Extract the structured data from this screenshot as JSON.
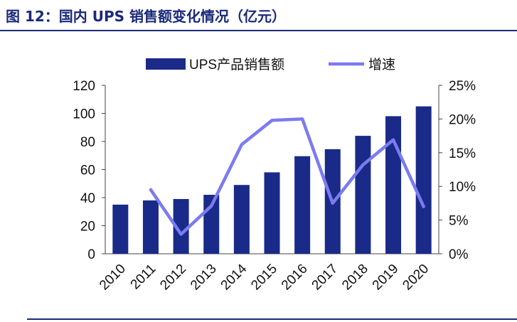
{
  "figure": {
    "title": "图 12：国内 UPS 销售额变化情况（亿元）"
  },
  "chart_data": {
    "type": "bar",
    "categories": [
      "2010",
      "2011",
      "2012",
      "2013",
      "2014",
      "2015",
      "2016",
      "2017",
      "2018",
      "2019",
      "2020"
    ],
    "series": [
      {
        "name": "UPS产品销售额",
        "type": "bar",
        "axis": "left",
        "color": "#1a2a88",
        "values": [
          35,
          38,
          39,
          42,
          49,
          58,
          69.5,
          74.5,
          84,
          98,
          105
        ]
      },
      {
        "name": "增速",
        "type": "line",
        "axis": "right",
        "color": "#7b7bf0",
        "values": [
          null,
          9.5,
          2.9,
          7.1,
          16.2,
          19.8,
          20.0,
          7.5,
          13.2,
          16.9,
          7.0
        ]
      }
    ],
    "y_left": {
      "min": 0,
      "max": 120,
      "ticks": [
        0,
        20,
        40,
        60,
        80,
        100,
        120
      ]
    },
    "y_right": {
      "min": 0,
      "max": 25,
      "ticks": [
        "0%",
        "5%",
        "10%",
        "15%",
        "20%",
        "25%"
      ]
    },
    "legend": "top-center",
    "grid": false
  }
}
